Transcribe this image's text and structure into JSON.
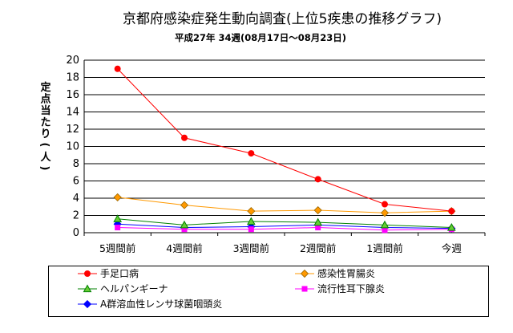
{
  "chart_data": {
    "type": "line",
    "title": "京都府感染症発生動向調査(上位5疾患の推移グラフ)",
    "subtitle": "平成27年 34週(08月17日～08月23日)",
    "ylabel": "定点当たり(人)",
    "xlabel": "",
    "categories": [
      "5週間前",
      "4週間前",
      "3週間前",
      "2週間前",
      "1週間前",
      "今週"
    ],
    "ylim": [
      0,
      20
    ],
    "yticks": [
      "0",
      "2",
      "4",
      "6",
      "8",
      "10",
      "12",
      "14",
      "16",
      "18",
      "20"
    ],
    "grid": true,
    "legend_position": "bottom",
    "series": [
      {
        "name": "手足口病",
        "values": [
          19.0,
          11.0,
          9.2,
          6.2,
          3.3,
          2.5
        ],
        "color": "#ff0000",
        "marker": "circle"
      },
      {
        "name": "感染性胃腸炎",
        "values": [
          4.1,
          3.2,
          2.5,
          2.6,
          2.3,
          2.5
        ],
        "color": "#ff9900",
        "marker": "diamond"
      },
      {
        "name": "ヘルパンギーナ",
        "values": [
          1.6,
          0.9,
          1.3,
          1.2,
          0.9,
          0.6
        ],
        "color": "#008000",
        "marker": "triangle"
      },
      {
        "name": "流行性耳下腺炎",
        "values": [
          0.6,
          0.4,
          0.4,
          0.6,
          0.3,
          0.4
        ],
        "color": "#ff00ff",
        "marker": "square"
      },
      {
        "name": "A群溶血性レンサ球菌咽頭炎",
        "values": [
          1.0,
          0.6,
          0.7,
          0.9,
          0.6,
          0.5
        ],
        "color": "#0000ff",
        "marker": "diamond"
      }
    ]
  }
}
